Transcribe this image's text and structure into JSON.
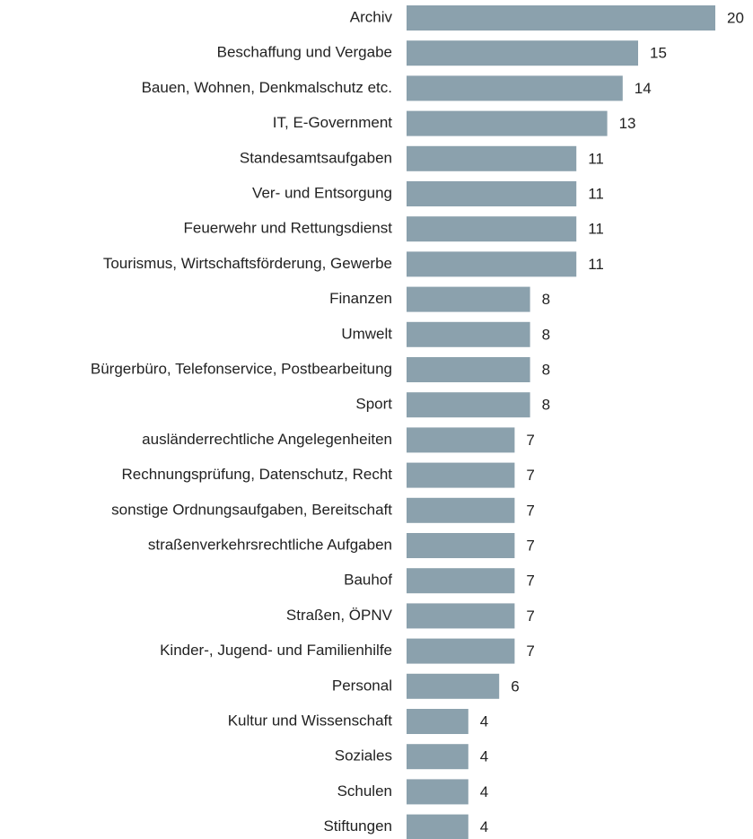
{
  "chart_data": {
    "type": "bar",
    "orientation": "horizontal",
    "color": "#8ba1ad",
    "categories": [
      "Archiv",
      "Beschaffung und Vergabe",
      "Bauen, Wohnen, Denkmalschutz etc.",
      "IT, E-Government",
      "Standesamtsaufgaben",
      "Ver- und Entsorgung",
      "Feuerwehr und Rettungsdienst",
      "Tourismus, Wirtschaftsförderung, Gewerbe",
      "Finanzen",
      "Umwelt",
      "Bürgerbüro, Telefonservice, Postbearbeitung",
      "Sport",
      "ausländerrechtliche Angelegenheiten",
      "Rechnungsprüfung, Datenschutz, Recht",
      "sonstige Ordnungsaufgaben, Bereitschaft",
      "straßenverkehrsrechtliche Aufgaben",
      "Bauhof",
      "Straßen, ÖPNV",
      "Kinder-, Jugend- und Familienhilfe",
      "Personal",
      "Kultur und Wissenschaft",
      "Soziales",
      "Schulen",
      "Stiftungen"
    ],
    "values": [
      20,
      15,
      14,
      13,
      11,
      11,
      11,
      11,
      8,
      8,
      8,
      8,
      7,
      7,
      7,
      7,
      7,
      7,
      7,
      6,
      4,
      4,
      4,
      4
    ]
  }
}
